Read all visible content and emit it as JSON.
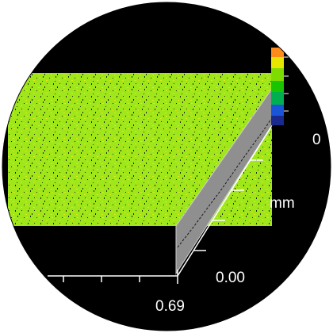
{
  "viewer": {
    "title": "",
    "background_color": "#000000",
    "surface_color_primary": "#9fe61a",
    "surface_color_secondary": "#e6e61a",
    "wall_color": "#8f8f8f",
    "labels": {
      "x_axis_end": "0.69",
      "z_axis_zero": "0.00",
      "z_axis_unit": "mm",
      "colorbar_partial_label": "0"
    },
    "colorbar": {
      "colors": [
        "#ff8c1a",
        "#e6e600",
        "#7fdc00",
        "#19c400",
        "#00b050",
        "#1a55d8",
        "#1a2a8c"
      ]
    }
  }
}
